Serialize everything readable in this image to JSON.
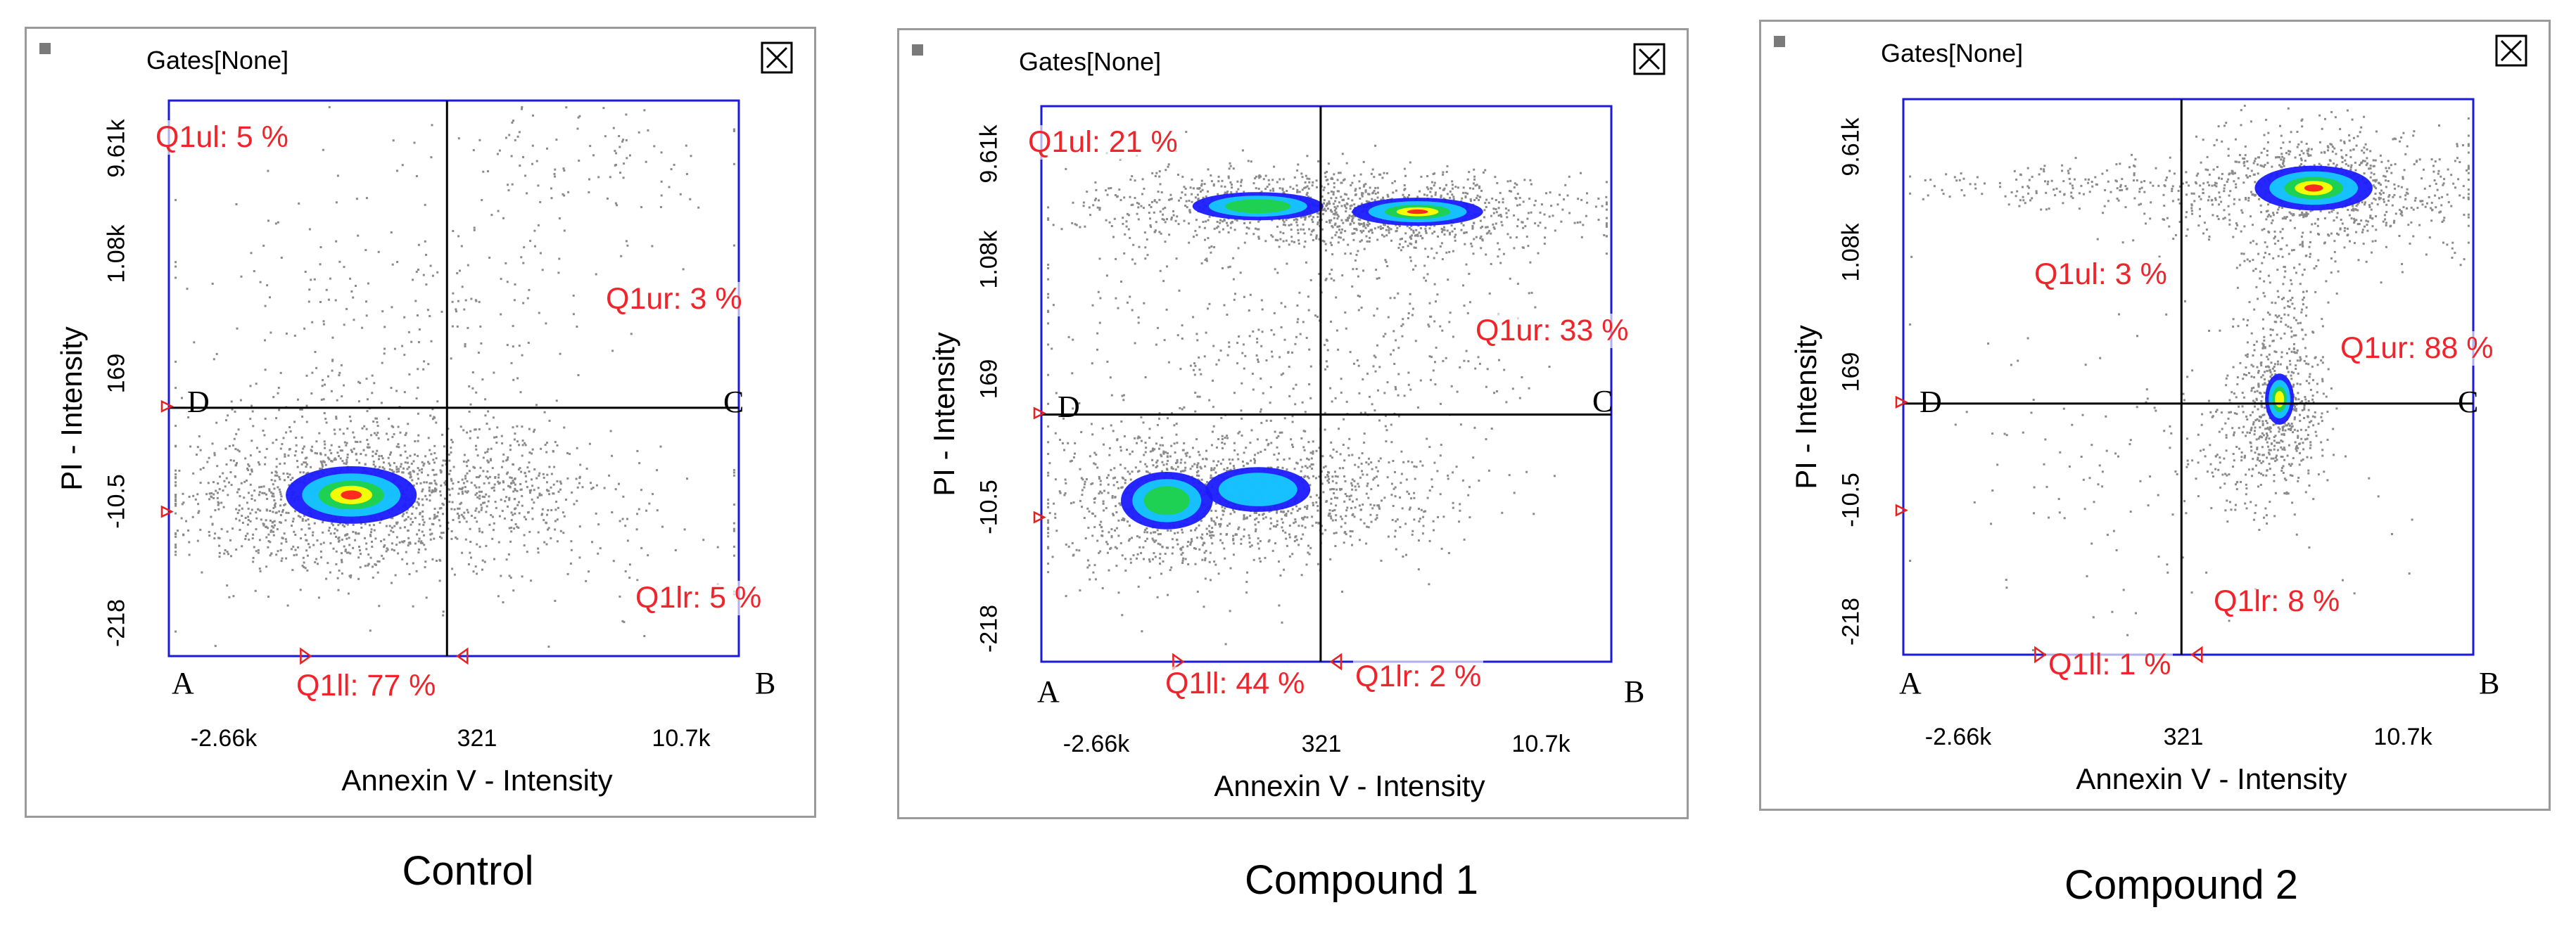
{
  "chart_data": [
    {
      "type": "scatter",
      "title": "Control",
      "gates_label": "Gates[None]",
      "xlabel": "Annexin V - Intensity",
      "ylabel": "PI - Intensity",
      "x_ticks": [
        "-2.66k",
        "321",
        "10.7k"
      ],
      "y_ticks": [
        "9.61k",
        "1.08k",
        "169",
        "-10.5",
        "-218"
      ],
      "quadrant_letters": [
        "D",
        "C",
        "A",
        "B"
      ],
      "quadrants": [
        {
          "name": "Q1ul",
          "label": "Q1ul: 5 %",
          "percent": 5
        },
        {
          "name": "Q1ur",
          "label": "Q1ur: 3 %",
          "percent": 3
        },
        {
          "name": "Q1lr",
          "label": "Q1lr: 5 %",
          "percent": 5
        },
        {
          "name": "Q1ll",
          "label": "Q1ll: 77 %",
          "percent": 77
        }
      ]
    },
    {
      "type": "scatter",
      "title": "Compound 1",
      "gates_label": "Gates[None]",
      "xlabel": "Annexin V - Intensity",
      "ylabel": "PI - Intensity",
      "x_ticks": [
        "-2.66k",
        "321",
        "10.7k"
      ],
      "y_ticks": [
        "9.61k",
        "1.08k",
        "169",
        "-10.5",
        "-218"
      ],
      "quadrant_letters": [
        "D",
        "C",
        "A",
        "B"
      ],
      "quadrants": [
        {
          "name": "Q1ul",
          "label": "Q1ul: 21 %",
          "percent": 21
        },
        {
          "name": "Q1ur",
          "label": "Q1ur: 33 %",
          "percent": 33
        },
        {
          "name": "Q1lr",
          "label": "Q1lr: 2 %",
          "percent": 2
        },
        {
          "name": "Q1ll",
          "label": "Q1ll: 44 %",
          "percent": 44
        }
      ]
    },
    {
      "type": "scatter",
      "title": "Compound 2",
      "gates_label": "Gates[None]",
      "xlabel": "Annexin V - Intensity",
      "ylabel": "PI - Intensity",
      "x_ticks": [
        "-2.66k",
        "321",
        "10.7k"
      ],
      "y_ticks": [
        "9.61k",
        "1.08k",
        "169",
        "-10.5",
        "-218"
      ],
      "quadrant_letters": [
        "D",
        "C",
        "A",
        "B"
      ],
      "quadrants": [
        {
          "name": "Q1ul",
          "label": "Q1ul: 3 %",
          "percent": 3
        },
        {
          "name": "Q1ur",
          "label": "Q1ur: 88 %",
          "percent": 88
        },
        {
          "name": "Q1lr",
          "label": "Q1lr: 8 %",
          "percent": 8
        },
        {
          "name": "Q1ll",
          "label": "Q1ll: 1 %",
          "percent": 1
        }
      ]
    }
  ]
}
